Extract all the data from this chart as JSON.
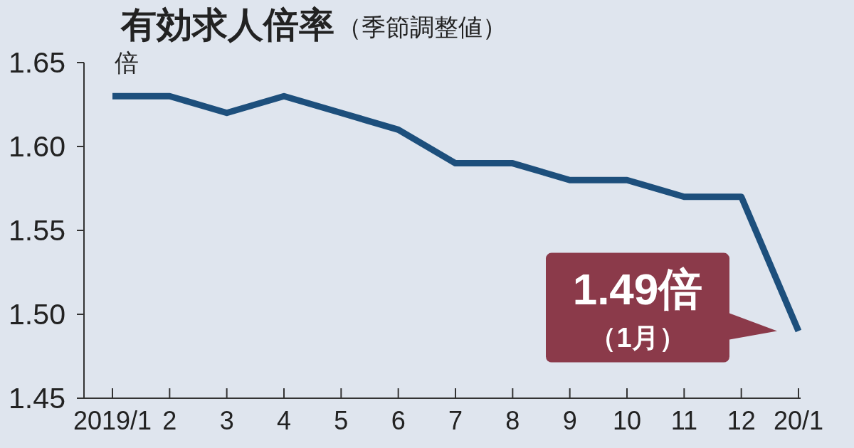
{
  "chart_data": {
    "type": "line",
    "title": "有効求人倍率",
    "subtitle": "（季節調整値）",
    "ylabel": "倍",
    "categories": [
      "2019/1",
      "2",
      "3",
      "4",
      "5",
      "6",
      "7",
      "8",
      "9",
      "10",
      "11",
      "12",
      "20/1"
    ],
    "series": [
      {
        "color": "#1d4f7c",
        "values": [
          1.63,
          1.63,
          1.62,
          1.63,
          1.62,
          1.61,
          1.59,
          1.59,
          1.58,
          1.58,
          1.57,
          1.57,
          1.49
        ]
      }
    ],
    "ylim": [
      1.45,
      1.65
    ],
    "yticks": [
      1.45,
      {
        "value": 1.5,
        "label": "1.50"
      },
      1.55,
      {
        "value": 1.6,
        "label": "1.60"
      },
      1.65
    ],
    "marker": "none",
    "line_style": "solid",
    "grid": false,
    "annotations": [
      {
        "text": "1.49倍",
        "x": "20/1",
        "y": 1.49
      },
      "（1月）"
    ]
  }
}
